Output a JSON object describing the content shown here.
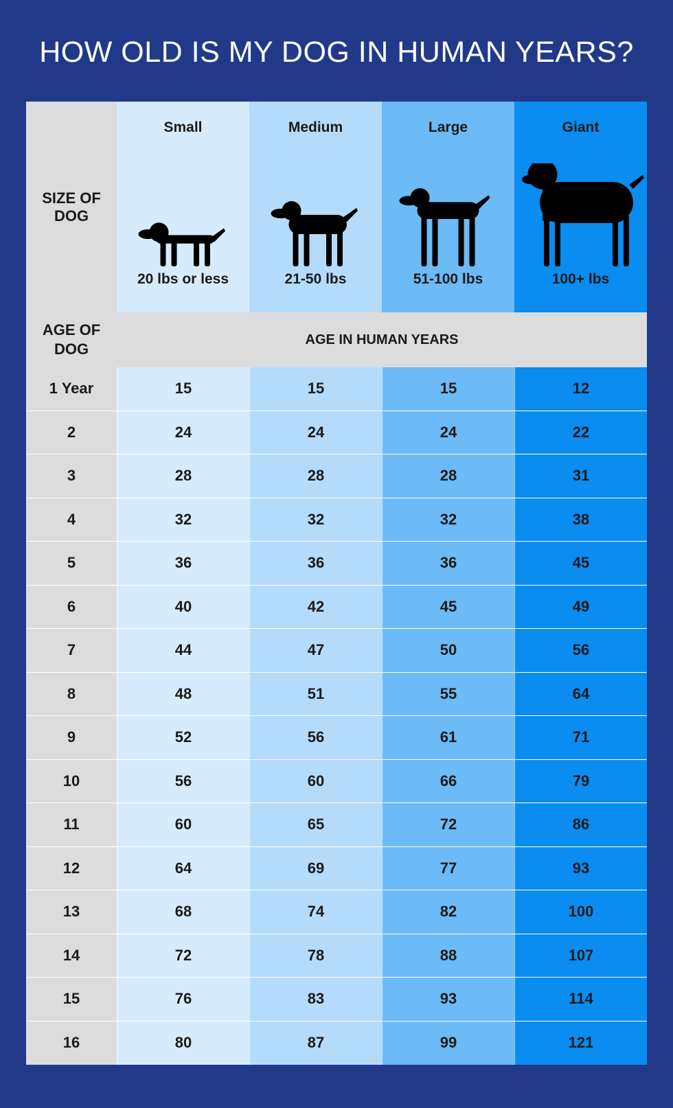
{
  "title": "HOW OLD IS MY DOG IN HUMAN YEARS?",
  "size_label": "SIZE OF DOG",
  "sizes": [
    {
      "name": "Small",
      "weight": "20 lbs or less"
    },
    {
      "name": "Medium",
      "weight": "21-50 lbs"
    },
    {
      "name": "Large",
      "weight": "51-100 lbs"
    },
    {
      "name": "Giant",
      "weight": "100+ lbs"
    }
  ],
  "age_label": "AGE OF DOG",
  "human_label": "AGE IN HUMAN YEARS",
  "rows": [
    {
      "age": "1 Year",
      "values": [
        15,
        15,
        15,
        12
      ]
    },
    {
      "age": "2",
      "values": [
        24,
        24,
        24,
        22
      ]
    },
    {
      "age": "3",
      "values": [
        28,
        28,
        28,
        31
      ]
    },
    {
      "age": "4",
      "values": [
        32,
        32,
        32,
        38
      ]
    },
    {
      "age": "5",
      "values": [
        36,
        36,
        36,
        45
      ]
    },
    {
      "age": "6",
      "values": [
        40,
        42,
        45,
        49
      ]
    },
    {
      "age": "7",
      "values": [
        44,
        47,
        50,
        56
      ]
    },
    {
      "age": "8",
      "values": [
        48,
        51,
        55,
        64
      ]
    },
    {
      "age": "9",
      "values": [
        52,
        56,
        61,
        71
      ]
    },
    {
      "age": "10",
      "values": [
        56,
        60,
        66,
        79
      ]
    },
    {
      "age": "11",
      "values": [
        60,
        65,
        72,
        86
      ]
    },
    {
      "age": "12",
      "values": [
        64,
        69,
        77,
        93
      ]
    },
    {
      "age": "13",
      "values": [
        68,
        74,
        82,
        100
      ]
    },
    {
      "age": "14",
      "values": [
        72,
        78,
        88,
        107
      ]
    },
    {
      "age": "15",
      "values": [
        76,
        83,
        93,
        114
      ]
    },
    {
      "age": "16",
      "values": [
        80,
        87,
        99,
        121
      ]
    }
  ]
}
